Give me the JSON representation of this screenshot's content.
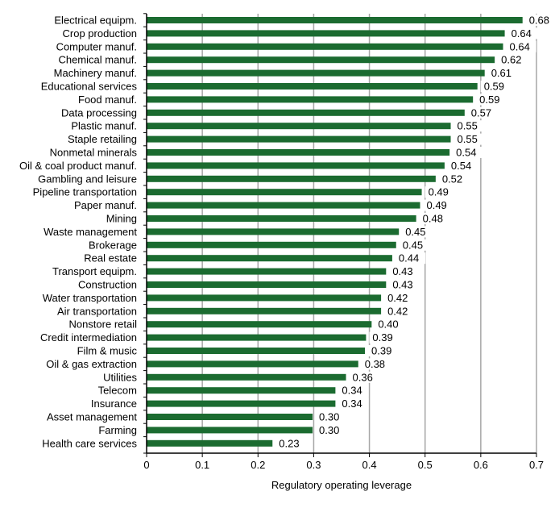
{
  "chart_data": {
    "type": "bar",
    "orientation": "horizontal",
    "categories": [
      "Electrical equipm.",
      "Crop production",
      "Computer manuf.",
      "Chemical manuf.",
      "Machinery manuf.",
      "Educational services",
      "Food manuf.",
      "Data processing",
      "Plastic manuf.",
      "Staple retailing",
      "Nonmetal minerals",
      "Oil & coal product manuf.",
      "Gambling and leisure",
      "Pipeline transportation",
      "Paper manuf.",
      "Mining",
      "Waste management",
      "Brokerage",
      "Real estate",
      "Transport equipm.",
      "Construction",
      "Water transportation",
      "Air transportation",
      "Nonstore retail",
      "Credit intermediation",
      "Film & music",
      "Oil & gas extraction",
      "Utilities",
      "Telecom",
      "Insurance",
      "Asset management",
      "Farming",
      "Health care services"
    ],
    "values": [
      0.675,
      0.643,
      0.64,
      0.625,
      0.607,
      0.594,
      0.586,
      0.571,
      0.546,
      0.546,
      0.544,
      0.535,
      0.519,
      0.494,
      0.491,
      0.484,
      0.453,
      0.448,
      0.441,
      0.43,
      0.43,
      0.421,
      0.421,
      0.404,
      0.394,
      0.392,
      0.38,
      0.358,
      0.339,
      0.339,
      0.298,
      0.298,
      0.226
    ],
    "value_labels": [
      "0.68",
      "0.64",
      "0.64",
      "0.62",
      "0.61",
      "0.59",
      "0.59",
      "0.57",
      "0.55",
      "0.55",
      "0.54",
      "0.54",
      "0.52",
      "0.49",
      "0.49",
      "0.48",
      "0.45",
      "0.45",
      "0.44",
      "0.43",
      "0.43",
      "0.42",
      "0.42",
      "0.40",
      "0.39",
      "0.39",
      "0.38",
      "0.36",
      "0.34",
      "0.34",
      "0.30",
      "0.30",
      "0.23"
    ],
    "xlim": [
      0,
      0.7
    ],
    "x_ticks": [
      "0",
      "0.1",
      "0.2",
      "0.3",
      "0.4",
      "0.5",
      "0.6",
      "0.7"
    ],
    "xlabel": "Regulatory operating leverage",
    "ylabel": "",
    "grid": "vertical",
    "legend": "none",
    "colors": {
      "bar": "#1b6b30",
      "grid": "#a6a6a6",
      "axis": "#000000",
      "text": "#000000"
    }
  }
}
